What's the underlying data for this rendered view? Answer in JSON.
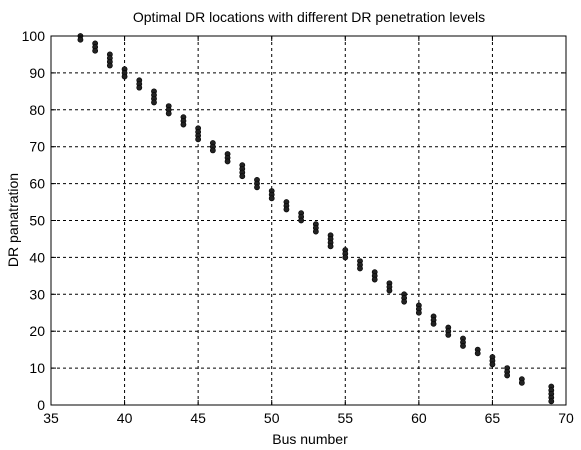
{
  "chart_data": {
    "type": "scatter",
    "title": "Optimal DR locations with different DR penetration levels",
    "xlabel": "Bus number",
    "ylabel": "DR panatration",
    "xlim": [
      35,
      70
    ],
    "ylim": [
      0,
      100
    ],
    "xticks": [
      35,
      40,
      45,
      50,
      55,
      60,
      65,
      70
    ],
    "yticks": [
      0,
      10,
      20,
      30,
      40,
      50,
      60,
      70,
      80,
      90,
      100
    ],
    "grid": true,
    "marker_color": "#222222",
    "points": [
      [
        37,
        100
      ],
      [
        37,
        99
      ],
      [
        38,
        98
      ],
      [
        38,
        97
      ],
      [
        38,
        96
      ],
      [
        39,
        95
      ],
      [
        39,
        94
      ],
      [
        39,
        93
      ],
      [
        39,
        92
      ],
      [
        40,
        91
      ],
      [
        40,
        90
      ],
      [
        40,
        89
      ],
      [
        41,
        88
      ],
      [
        41,
        87
      ],
      [
        41,
        86
      ],
      [
        42,
        85
      ],
      [
        42,
        84
      ],
      [
        42,
        83
      ],
      [
        42,
        82
      ],
      [
        43,
        81
      ],
      [
        43,
        80
      ],
      [
        43,
        79
      ],
      [
        44,
        78
      ],
      [
        44,
        77
      ],
      [
        44,
        76
      ],
      [
        45,
        75
      ],
      [
        45,
        74
      ],
      [
        45,
        73
      ],
      [
        45,
        72
      ],
      [
        46,
        71
      ],
      [
        46,
        70
      ],
      [
        46,
        69
      ],
      [
        47,
        68
      ],
      [
        47,
        67
      ],
      [
        47,
        66
      ],
      [
        48,
        65
      ],
      [
        48,
        64
      ],
      [
        48,
        63
      ],
      [
        48,
        62
      ],
      [
        49,
        61
      ],
      [
        49,
        60
      ],
      [
        49,
        59
      ],
      [
        50,
        58
      ],
      [
        50,
        57
      ],
      [
        50,
        56
      ],
      [
        51,
        55
      ],
      [
        51,
        54
      ],
      [
        51,
        53
      ],
      [
        52,
        52
      ],
      [
        52,
        51
      ],
      [
        52,
        50
      ],
      [
        53,
        49
      ],
      [
        53,
        48
      ],
      [
        53,
        47
      ],
      [
        54,
        46
      ],
      [
        54,
        45
      ],
      [
        54,
        44
      ],
      [
        54,
        43
      ],
      [
        55,
        42
      ],
      [
        55,
        41
      ],
      [
        55,
        40
      ],
      [
        56,
        39
      ],
      [
        56,
        38
      ],
      [
        56,
        37
      ],
      [
        57,
        36
      ],
      [
        57,
        35
      ],
      [
        57,
        34
      ],
      [
        58,
        33
      ],
      [
        58,
        32
      ],
      [
        58,
        31
      ],
      [
        59,
        30
      ],
      [
        59,
        29
      ],
      [
        59,
        28
      ],
      [
        60,
        27
      ],
      [
        60,
        26
      ],
      [
        60,
        25
      ],
      [
        61,
        24
      ],
      [
        61,
        23
      ],
      [
        61,
        22
      ],
      [
        62,
        21
      ],
      [
        62,
        20
      ],
      [
        62,
        19
      ],
      [
        63,
        18
      ],
      [
        63,
        17
      ],
      [
        63,
        16
      ],
      [
        64,
        15
      ],
      [
        64,
        14
      ],
      [
        65,
        13
      ],
      [
        65,
        12
      ],
      [
        65,
        11
      ],
      [
        66,
        10
      ],
      [
        66,
        9
      ],
      [
        66,
        8
      ],
      [
        67,
        7
      ],
      [
        67,
        6
      ],
      [
        69,
        5
      ],
      [
        69,
        4
      ],
      [
        69,
        3
      ],
      [
        69,
        2
      ],
      [
        69,
        1
      ]
    ]
  }
}
